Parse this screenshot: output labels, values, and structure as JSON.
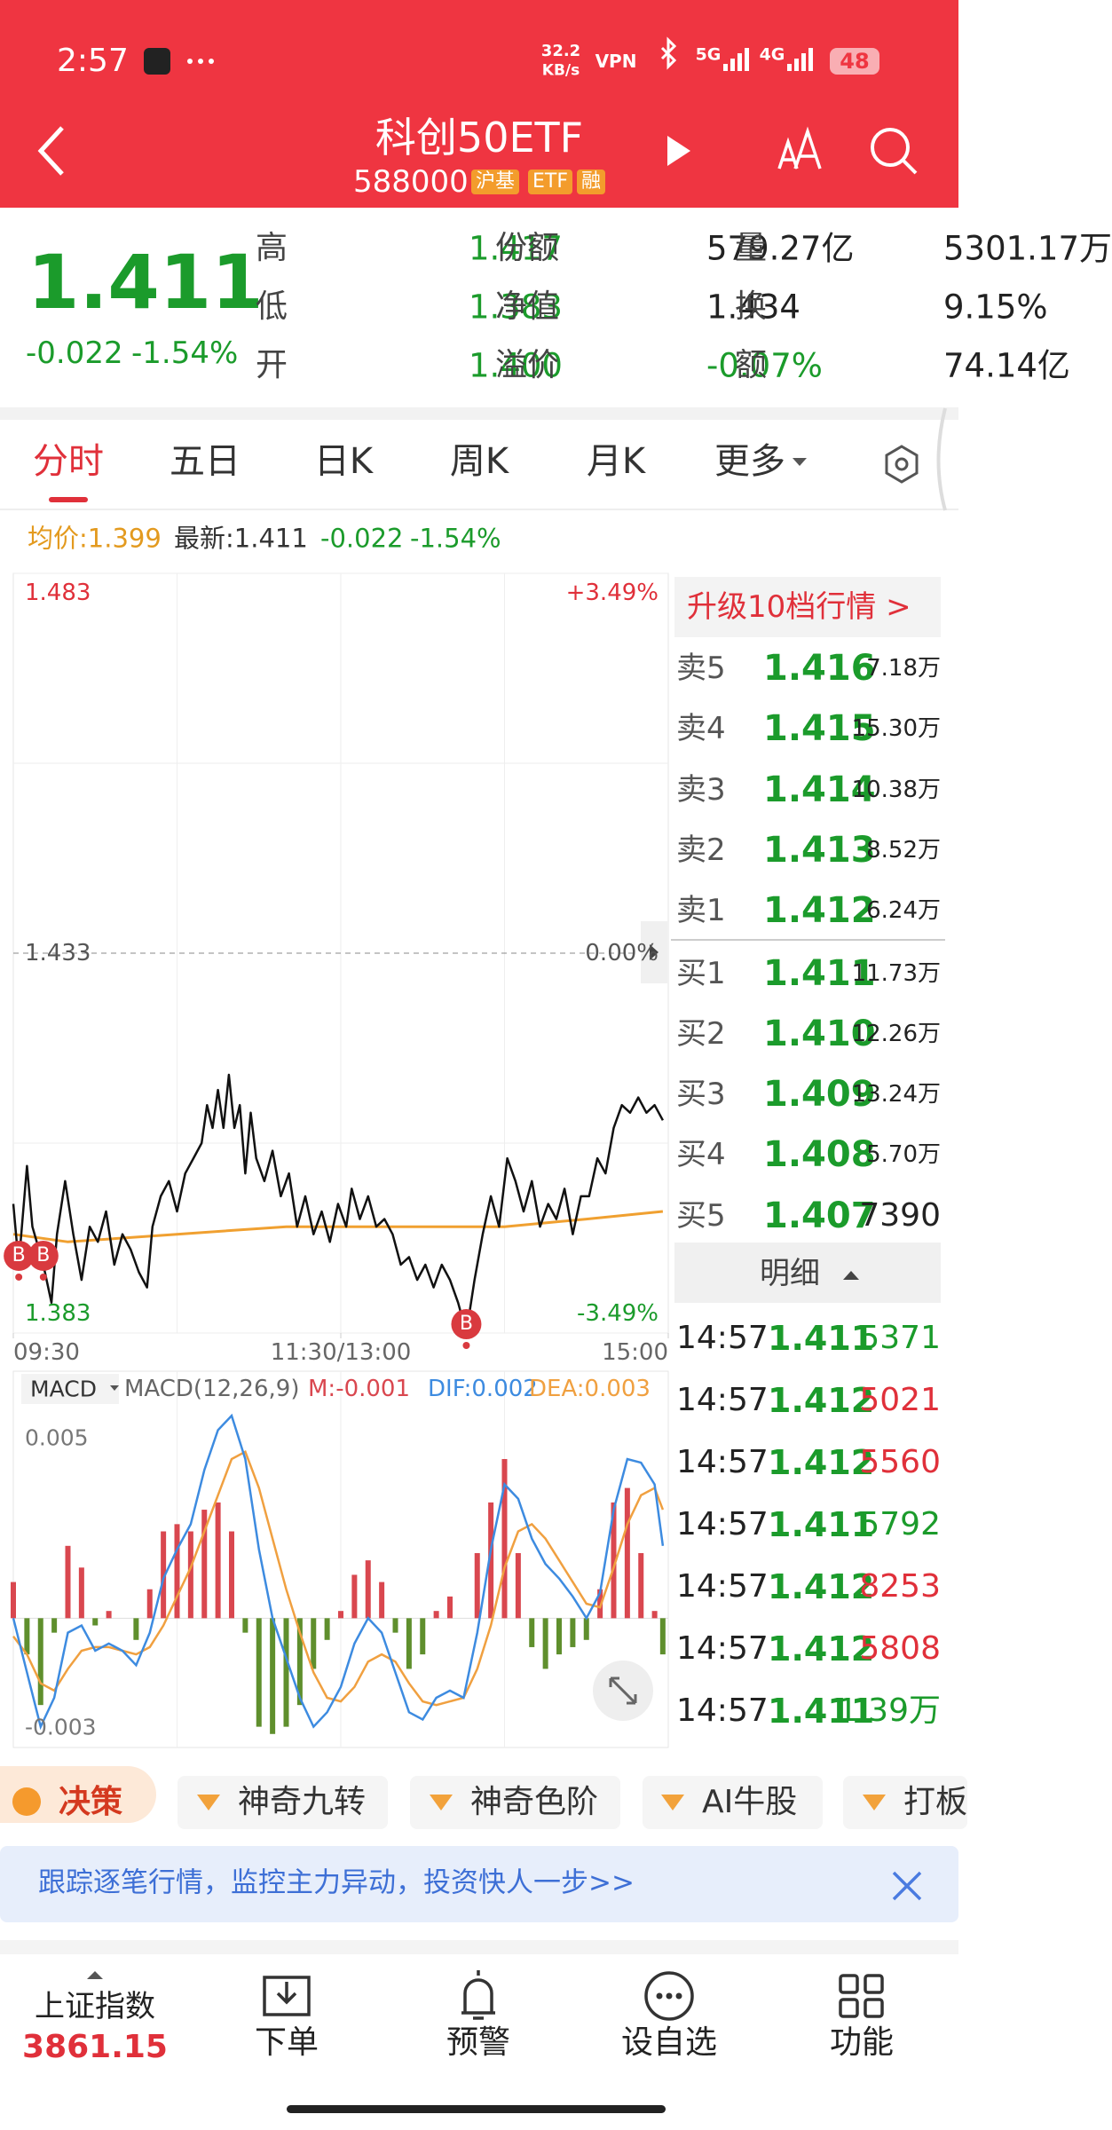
{
  "status_bar": {
    "time": "2:57",
    "speed_value": "32.2",
    "speed_unit": "KB/s",
    "vpn": "VPN",
    "net1": "5G",
    "net2": "4G",
    "battery": "48"
  },
  "header": {
    "title": "科创50ETF",
    "code": "588000",
    "tags": [
      "沪基",
      "ETF",
      "融"
    ]
  },
  "quote": {
    "price": "1.411",
    "change": "-0.022",
    "change_pct": "-1.54%",
    "color": "#1b9b2b",
    "stats": [
      [
        {
          "label": "高",
          "value": "1.417",
          "color": "#1b9b2b"
        },
        {
          "label": "份额",
          "value": "579.27亿",
          "color": "#222"
        },
        {
          "label": "量",
          "value": "5301.17万",
          "color": "#222"
        }
      ],
      [
        {
          "label": "低",
          "value": "1.383",
          "color": "#1b9b2b"
        },
        {
          "label": "净值",
          "value": "1.434",
          "color": "#222"
        },
        {
          "label": "换",
          "value": "9.15%",
          "color": "#222"
        }
      ],
      [
        {
          "label": "开",
          "value": "1.400",
          "color": "#1b9b2b"
        },
        {
          "label": "溢价",
          "value": "-0.07%",
          "color": "#1b9b2b"
        },
        {
          "label": "额",
          "value": "74.14亿",
          "color": "#222"
        }
      ]
    ]
  },
  "tabs": {
    "items": [
      "分时",
      "五日",
      "日K",
      "周K",
      "月K",
      "更多"
    ],
    "active": 0
  },
  "info_line": {
    "avg": "均价:1.399",
    "latest": "最新:1.411",
    "change": "-0.022",
    "change_pct": "-1.54%"
  },
  "intraday": {
    "xlim": [
      0,
      240
    ],
    "ylim": [
      1.383,
      1.483
    ],
    "yticks": [
      1.483,
      1.433,
      1.383
    ],
    "ytick_pct_labels": [
      "+3.49%",
      "0.00%",
      "-3.49%"
    ],
    "xticks": [
      {
        "value": 0,
        "label": "09:30"
      },
      {
        "value": 120,
        "label": "11:30/13:00"
      },
      {
        "value": 240,
        "label": "15:00"
      }
    ],
    "xgrid": [
      60,
      120,
      180
    ],
    "ygrid": [
      1.458,
      1.408
    ],
    "up_color": "#e0303a",
    "down_color": "#1b9b2b",
    "price_color": "#111",
    "avg_color": "#f0a030",
    "x": [
      0,
      2,
      5,
      7,
      11,
      14,
      16,
      19,
      22,
      25,
      28,
      31,
      34,
      37,
      40,
      43,
      46,
      49,
      51,
      54,
      57,
      60,
      63,
      66,
      69,
      71,
      73,
      75,
      77,
      79,
      81,
      83,
      85,
      87,
      89,
      92,
      95,
      98,
      101,
      104,
      107,
      110,
      113,
      116,
      119,
      122,
      124,
      127,
      130,
      133,
      136,
      139,
      142,
      145,
      148,
      151,
      154,
      157,
      160,
      163,
      166,
      169,
      172,
      175,
      178,
      181,
      184,
      187,
      190,
      193,
      196,
      199,
      202,
      205,
      208,
      211,
      214,
      217,
      220,
      223,
      226,
      229,
      232,
      235,
      238
    ],
    "price": [
      1.4,
      1.392,
      1.405,
      1.397,
      1.392,
      1.387,
      1.396,
      1.403,
      1.396,
      1.39,
      1.397,
      1.395,
      1.399,
      1.392,
      1.396,
      1.394,
      1.391,
      1.389,
      1.397,
      1.401,
      1.403,
      1.399,
      1.404,
      1.406,
      1.408,
      1.413,
      1.41,
      1.415,
      1.41,
      1.417,
      1.41,
      1.413,
      1.404,
      1.412,
      1.406,
      1.403,
      1.407,
      1.401,
      1.404,
      1.397,
      1.401,
      1.396,
      1.399,
      1.395,
      1.4,
      1.397,
      1.402,
      1.398,
      1.401,
      1.397,
      1.398,
      1.396,
      1.392,
      1.393,
      1.39,
      1.392,
      1.389,
      1.392,
      1.39,
      1.387,
      1.383,
      1.39,
      1.396,
      1.401,
      1.397,
      1.406,
      1.403,
      1.399,
      1.403,
      1.397,
      1.4,
      1.398,
      1.402,
      1.396,
      1.401,
      1.401,
      1.406,
      1.404,
      1.41,
      1.413,
      1.412,
      1.414,
      1.412,
      1.413,
      1.411
    ],
    "avg_x": [
      0,
      20,
      60,
      100,
      140,
      180,
      210,
      238
    ],
    "avg": [
      1.396,
      1.395,
      1.396,
      1.397,
      1.397,
      1.397,
      1.398,
      1.399
    ],
    "markers": [
      {
        "x": 2,
        "label": "B"
      },
      {
        "x": 11,
        "label": "B"
      },
      {
        "x": 166,
        "label": "B"
      }
    ]
  },
  "macd": {
    "selector": "MACD",
    "title": "MACD(12,26,9)",
    "m_label": "M:-0.001",
    "dif_label": "DIF:0.002",
    "dea_label": "DEA:0.003",
    "ylim": [
      -0.0035,
      0.0057
    ],
    "yticks": [
      0.005,
      -0.003
    ],
    "dif_color": "#3d8be0",
    "dea_color": "#f0a040",
    "up_color": "#d9474f",
    "down_color": "#5f8f2d",
    "x": [
      0,
      5,
      10,
      15,
      20,
      25,
      30,
      35,
      40,
      45,
      50,
      55,
      60,
      65,
      70,
      75,
      80,
      85,
      90,
      95,
      100,
      105,
      110,
      115,
      120,
      125,
      130,
      135,
      140,
      145,
      150,
      155,
      160,
      165,
      170,
      175,
      180,
      185,
      190,
      195,
      200,
      205,
      210,
      215,
      220,
      225,
      230,
      235,
      238
    ],
    "dif": [
      0,
      -0.0015,
      -0.003,
      -0.0022,
      -0.0004,
      -0.0002,
      -0.0009,
      -0.0007,
      -0.0009,
      -0.0013,
      -0.0004,
      0.0011,
      0.0019,
      0.0026,
      0.0041,
      0.0052,
      0.0056,
      0.0044,
      0.0019,
      0,
      -0.0011,
      -0.0022,
      -0.003,
      -0.0026,
      -0.0019,
      -0.0007,
      0,
      -0.0004,
      -0.0015,
      -0.0026,
      -0.0028,
      -0.0022,
      -0.002,
      -0.0022,
      -0.0004,
      0.0019,
      0.0037,
      0.0033,
      0.0022,
      0.0015,
      0.0011,
      0.0006,
      0,
      0.0007,
      0.003,
      0.0044,
      0.0043,
      0.0037,
      0.002
    ],
    "dea": [
      -0.0005,
      -0.001,
      -0.0018,
      -0.002,
      -0.0014,
      -0.0009,
      -0.0008,
      -0.0008,
      -0.0009,
      -0.001,
      -0.0008,
      -0.0002,
      0.0006,
      0.0014,
      0.0024,
      0.0034,
      0.0044,
      0.0046,
      0.0036,
      0.0022,
      0.0008,
      -0.0004,
      -0.0015,
      -0.0022,
      -0.0023,
      -0.0019,
      -0.0012,
      -0.001,
      -0.0012,
      -0.0018,
      -0.0023,
      -0.0024,
      -0.0023,
      -0.0022,
      -0.0014,
      -0.0002,
      0.0014,
      0.0024,
      0.0026,
      0.0022,
      0.0016,
      0.001,
      0.0004,
      0.0003,
      0.0014,
      0.0026,
      0.0034,
      0.0036,
      0.003
    ],
    "hist": [
      0.001,
      -0.001,
      -0.0024,
      -0.0004,
      0.002,
      0.0014,
      -0.0002,
      0.0002,
      0,
      -0.0006,
      0.0008,
      0.0024,
      0.0026,
      0.0024,
      0.003,
      0.0032,
      0.0024,
      -0.0004,
      -0.003,
      -0.0032,
      -0.003,
      -0.0024,
      -0.0014,
      -0.0006,
      0.0002,
      0.0012,
      0.0016,
      0.001,
      -0.0004,
      -0.0014,
      -0.001,
      0.0002,
      0.0006,
      0,
      0.0018,
      0.0032,
      0.0044,
      0.0018,
      -0.0008,
      -0.0014,
      -0.001,
      -0.0008,
      -0.0006,
      0.0008,
      0.0032,
      0.0036,
      0.0018,
      0.0002,
      -0.001
    ]
  },
  "order_book": {
    "upgrade": "升级10档行情 >",
    "price_color": "#1b9b2b",
    "asks": [
      {
        "label": "卖5",
        "price": "1.416",
        "volume": "7.18万"
      },
      {
        "label": "卖4",
        "price": "1.415",
        "volume": "15.30万"
      },
      {
        "label": "卖3",
        "price": "1.414",
        "volume": "10.38万"
      },
      {
        "label": "卖2",
        "price": "1.413",
        "volume": "8.52万"
      },
      {
        "label": "卖1",
        "price": "1.412",
        "volume": "6.24万"
      }
    ],
    "bids": [
      {
        "label": "买1",
        "price": "1.411",
        "volume": "11.73万"
      },
      {
        "label": "买2",
        "price": "1.410",
        "volume": "12.26万"
      },
      {
        "label": "买3",
        "price": "1.409",
        "volume": "13.24万"
      },
      {
        "label": "买4",
        "price": "1.408",
        "volume": "5.70万"
      },
      {
        "label": "买5",
        "price": "1.407",
        "volume": "7390"
      }
    ]
  },
  "detail": {
    "title": "明细",
    "rows": [
      {
        "time": "14:57",
        "price": "1.411",
        "volume": "5371",
        "color": "#1b9b2b"
      },
      {
        "time": "14:57",
        "price": "1.412",
        "volume": "5021",
        "color": "#e0303a"
      },
      {
        "time": "14:57",
        "price": "1.412",
        "volume": "5560",
        "color": "#e0303a"
      },
      {
        "time": "14:57",
        "price": "1.411",
        "volume": "5792",
        "color": "#1b9b2b"
      },
      {
        "time": "14:57",
        "price": "1.412",
        "volume": "8253",
        "color": "#e0303a"
      },
      {
        "time": "14:57",
        "price": "1.412",
        "volume": "5808",
        "color": "#e0303a"
      },
      {
        "time": "14:57",
        "price": "1.411",
        "volume": "1.39万",
        "color": "#1b9b2b"
      }
    ]
  },
  "strategies": [
    "决策",
    "神奇九转",
    "神奇色阶",
    "AI牛股",
    "打板"
  ],
  "banner": "跟踪逐笔行情，监控主力异动，投资快人一步>>",
  "bottom_nav": {
    "index_name": "上证指数",
    "index_value": "3861.15",
    "items": [
      "下单",
      "预警",
      "设自选",
      "功能"
    ]
  }
}
